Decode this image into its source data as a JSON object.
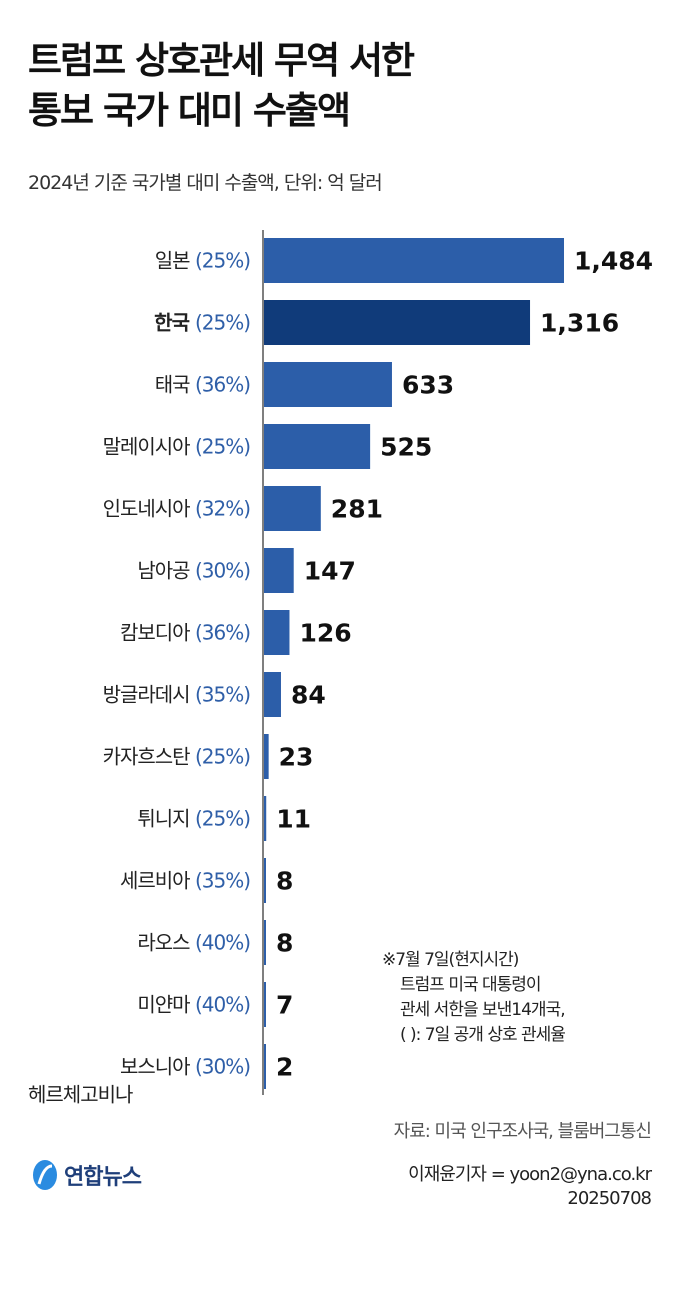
{
  "title_lines": [
    "트럼프 상호관세 무역 서한",
    "통보 국가 대미 수출액"
  ],
  "subtitle": "2024년 기준 국가별 대미 수출액, 단위: 억 달러",
  "chart_data": {
    "type": "bar",
    "orientation": "horizontal",
    "categories": [
      "일본",
      "한국",
      "태국",
      "말레이시아",
      "인도네시아",
      "남아공",
      "캄보디아",
      "방글라데시",
      "카자흐스탄",
      "튀니지",
      "세르비아",
      "라오스",
      "미얀마",
      "보스니아 헤르체고비나"
    ],
    "category_label_lines": [
      [
        "일본"
      ],
      [
        "한국"
      ],
      [
        "태국"
      ],
      [
        "말레이시아"
      ],
      [
        "인도네시아"
      ],
      [
        "남아공"
      ],
      [
        "캄보디아"
      ],
      [
        "방글라데시"
      ],
      [
        "카자흐스탄"
      ],
      [
        "튀니지"
      ],
      [
        "세르비아"
      ],
      [
        "라오스"
      ],
      [
        "미얀마"
      ],
      [
        "보스니아",
        "헤르체고비나"
      ]
    ],
    "tariff_labels": [
      "(25%)",
      "(25%)",
      "(36%)",
      "(25%)",
      "(32%)",
      "(30%)",
      "(36%)",
      "(35%)",
      "(25%)",
      "(25%)",
      "(35%)",
      "(40%)",
      "(40%)",
      "(30%)"
    ],
    "values": [
      1484,
      1316,
      633,
      525,
      281,
      147,
      126,
      84,
      23,
      11,
      8,
      8,
      7,
      2
    ],
    "value_labels": [
      "1,484",
      "1,316",
      "633",
      "525",
      "281",
      "147",
      "126",
      "84",
      "23",
      "11",
      "8",
      "8",
      "7",
      "2"
    ],
    "highlight": "한국",
    "colors": {
      "bar": "#2c5ea9",
      "highlight": "#103b7a",
      "tariff": "#2f5fa8"
    },
    "xlim": [
      0,
      1484
    ],
    "grid": false
  },
  "note": [
    "※7월 7일(현지시간)",
    "트럼프 미국 대통령이",
    "관세 서한을 보낸14개국,",
    "(   ): 7일 공개 상호 관세율"
  ],
  "source": "자료: 미국 인구조사국, 블룸버그통신",
  "credit": [
    "이재윤기자 = yoon2@yna.co.kr",
    "20250708"
  ],
  "logo_text": "연합뉴스"
}
